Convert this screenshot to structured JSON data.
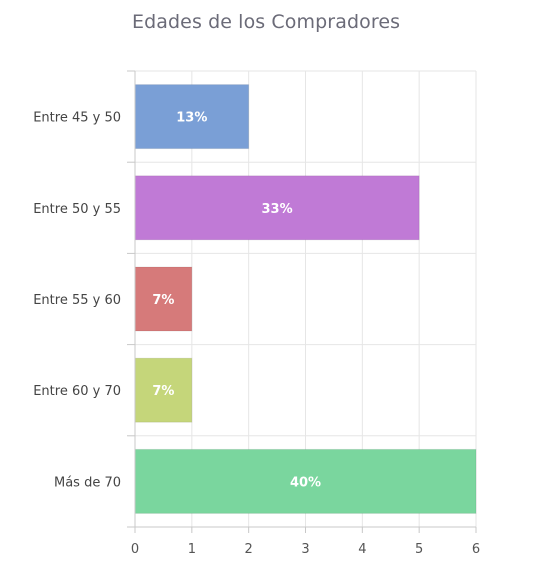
{
  "chart_data": {
    "type": "bar",
    "orientation": "horizontal",
    "title": "Edades de los Compradores",
    "categories": [
      "Entre 45 y 50",
      "Entre 50 y 55",
      "Entre 55 y 60",
      "Entre 60 y 70",
      "Más de 70"
    ],
    "values": [
      2,
      5,
      1,
      1,
      6
    ],
    "data_labels": [
      "13%",
      "33%",
      "7%",
      "7%",
      "40%"
    ],
    "colors": [
      "#7a9fd6",
      "#c07ad6",
      "#d67a7a",
      "#c5d67a",
      "#7ad69e"
    ],
    "xlim": [
      0,
      6
    ],
    "x_ticks": [
      "0",
      "1",
      "2",
      "3",
      "4",
      "5",
      "6"
    ],
    "grid": true,
    "legend": "none"
  }
}
